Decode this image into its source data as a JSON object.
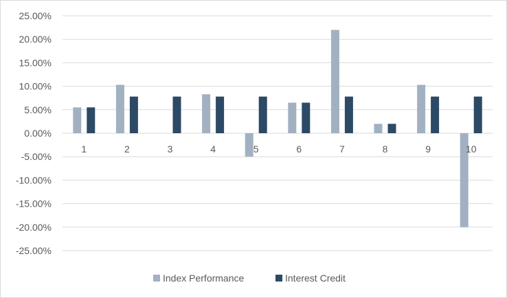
{
  "chart_data": {
    "type": "bar",
    "categories": [
      "1",
      "2",
      "3",
      "4",
      "5",
      "6",
      "7",
      "8",
      "9",
      "10"
    ],
    "series": [
      {
        "name": "Index Performance",
        "color": "#a2b1c2",
        "values": [
          0.055,
          0.103,
          0.0,
          0.083,
          -0.05,
          0.065,
          0.22,
          0.02,
          0.103,
          -0.2
        ]
      },
      {
        "name": "Interest Credit",
        "color": "#2c4a66",
        "values": [
          0.055,
          0.078,
          0.078,
          0.078,
          0.078,
          0.065,
          0.078,
          0.02,
          0.078,
          0.078
        ]
      }
    ],
    "ylim": [
      -0.25,
      0.25
    ],
    "yticks": [
      0.25,
      0.2,
      0.15,
      0.1,
      0.05,
      0.0,
      -0.05,
      -0.1,
      -0.15,
      -0.2,
      -0.25
    ],
    "ytick_labels": [
      "25.00%",
      "20.00%",
      "15.00%",
      "10.00%",
      "5.00%",
      "0.00%",
      "-5.00%",
      "-10.00%",
      "-15.00%",
      "-20.00%",
      "-25.00%"
    ],
    "grid": true,
    "legend_position": "bottom",
    "gridline_color": "#d9d9d9"
  }
}
